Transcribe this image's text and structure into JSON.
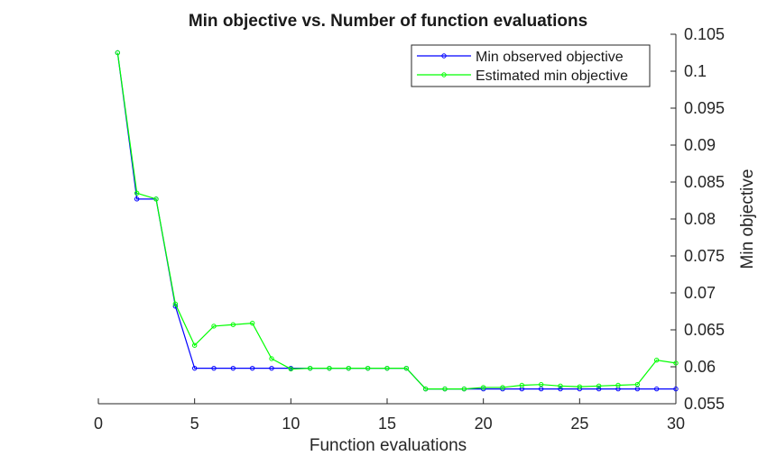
{
  "chart_data": {
    "type": "line",
    "title": "Min objective vs. Number of function evaluations",
    "xlabel": "Function evaluations",
    "ylabel": "Min objective",
    "xlim": [
      0,
      30
    ],
    "ylim": [
      0.055,
      0.105
    ],
    "xticks": [
      "0",
      "5",
      "10",
      "15",
      "20",
      "25",
      "30"
    ],
    "yticks": [
      "0.055",
      "0.06",
      "0.065",
      "0.07",
      "0.075",
      "0.08",
      "0.085",
      "0.09",
      "0.095",
      "0.1",
      "0.105"
    ],
    "y_axis_side": "right",
    "grid": false,
    "legend_position": "top-right",
    "x": [
      1,
      2,
      3,
      4,
      5,
      6,
      7,
      8,
      9,
      10,
      11,
      12,
      13,
      14,
      15,
      16,
      17,
      18,
      19,
      20,
      21,
      22,
      23,
      24,
      25,
      26,
      27,
      28,
      29,
      30
    ],
    "series": [
      {
        "name": "Min observed objective",
        "color": "#0000ff",
        "marker": "circle",
        "values": [
          0.1025,
          0.0827,
          0.0827,
          0.0682,
          0.0598,
          0.0598,
          0.0598,
          0.0598,
          0.0598,
          0.0598,
          0.0598,
          0.0598,
          0.0598,
          0.0598,
          0.0598,
          0.0598,
          0.057,
          0.057,
          0.057,
          0.057,
          0.057,
          0.057,
          0.057,
          0.057,
          0.057,
          0.057,
          0.057,
          0.057,
          0.057,
          0.057
        ]
      },
      {
        "name": "Estimated min objective",
        "color": "#00ff00",
        "marker": "circle",
        "values": [
          0.1025,
          0.0835,
          0.0827,
          0.0685,
          0.0629,
          0.0655,
          0.0657,
          0.0659,
          0.0611,
          0.0597,
          0.0598,
          0.0598,
          0.0598,
          0.0598,
          0.0598,
          0.0598,
          0.057,
          0.057,
          0.057,
          0.0572,
          0.0572,
          0.0575,
          0.0576,
          0.0574,
          0.0573,
          0.0574,
          0.0575,
          0.0576,
          0.0609,
          0.0605
        ]
      }
    ]
  }
}
